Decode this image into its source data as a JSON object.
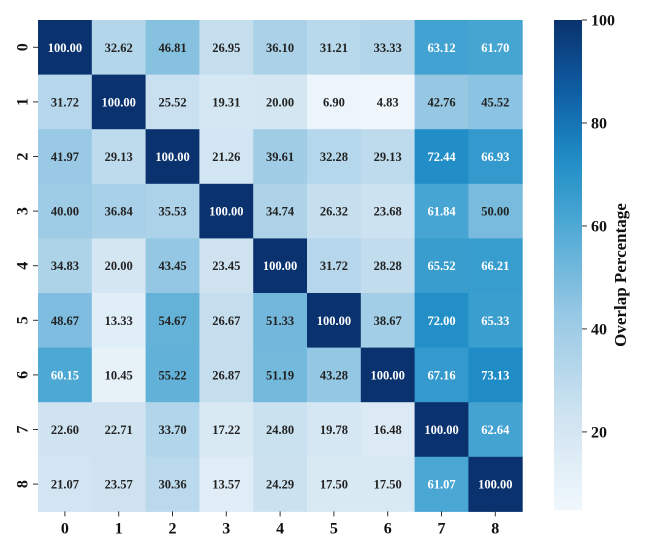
{
  "chart_data": {
    "type": "heatmap",
    "x_categories": [
      "0",
      "1",
      "2",
      "3",
      "4",
      "5",
      "6",
      "7",
      "8"
    ],
    "y_categories": [
      "0",
      "1",
      "2",
      "3",
      "4",
      "5",
      "6",
      "7",
      "8"
    ],
    "values": [
      [
        100.0,
        32.62,
        46.81,
        26.95,
        36.1,
        31.21,
        33.33,
        63.12,
        61.7
      ],
      [
        31.72,
        100.0,
        25.52,
        19.31,
        20.0,
        6.9,
        4.83,
        42.76,
        45.52
      ],
      [
        41.97,
        29.13,
        100.0,
        21.26,
        39.61,
        32.28,
        29.13,
        72.44,
        66.93
      ],
      [
        40.0,
        36.84,
        35.53,
        100.0,
        34.74,
        26.32,
        23.68,
        61.84,
        50.0
      ],
      [
        34.83,
        20.0,
        43.45,
        23.45,
        100.0,
        31.72,
        28.28,
        65.52,
        66.21
      ],
      [
        48.67,
        13.33,
        54.67,
        26.67,
        51.33,
        100.0,
        38.67,
        72.0,
        65.33
      ],
      [
        60.15,
        10.45,
        55.22,
        26.87,
        51.19,
        43.28,
        100.0,
        67.16,
        73.13
      ],
      [
        22.6,
        22.71,
        33.7,
        17.22,
        24.8,
        19.78,
        16.48,
        100.0,
        62.64
      ],
      [
        21.07,
        23.57,
        30.36,
        13.57,
        24.29,
        17.5,
        17.5,
        61.07,
        100.0
      ]
    ],
    "value_format": "0.00",
    "colormap": "Blues",
    "color_range": [
      4.83,
      100
    ],
    "colorbar": {
      "label": "Overlap Percentage",
      "ticks": [
        20,
        40,
        60,
        80,
        100
      ]
    },
    "title": "",
    "xlabel": "",
    "ylabel": ""
  }
}
